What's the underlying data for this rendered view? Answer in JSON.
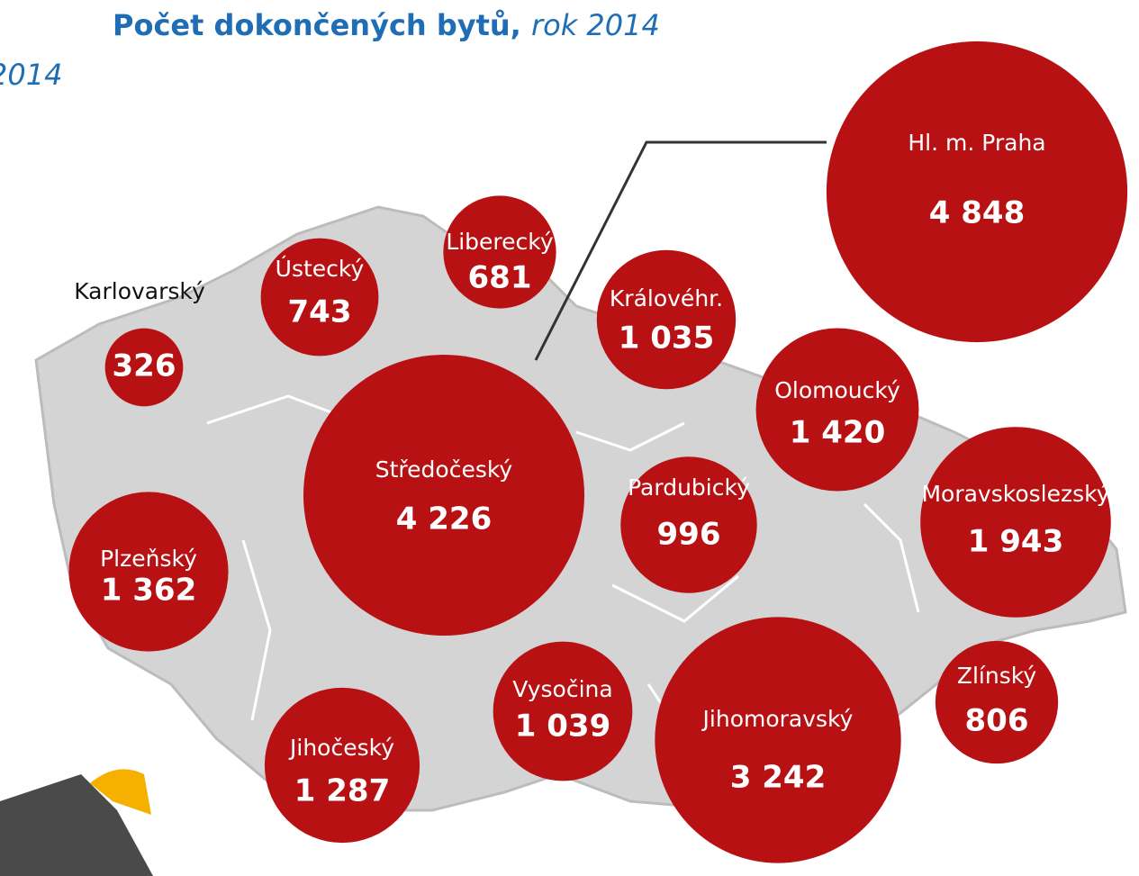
{
  "chart_data": {
    "type": "bubble-map",
    "title": "Počet dokončených bytů,",
    "subtitle": "rok 2014",
    "annotation": "2014",
    "color": "#b81114",
    "categories": [
      "Hl. m. Praha",
      "Středočeský",
      "Jihomoravský",
      "Moravskoslezský",
      "Olomoucký",
      "Plzeňský",
      "Jihočeský",
      "Vysočina",
      "Královéhr.",
      "Pardubický",
      "Liberecký",
      "Zlínský",
      "Ústecký",
      "Karlovarský"
    ],
    "values": [
      4848,
      4226,
      3242,
      1943,
      1420,
      1362,
      1287,
      1039,
      1035,
      996,
      681,
      806,
      743,
      326
    ],
    "value_labels": [
      "4 848",
      "4 226",
      "3 242",
      "1 943",
      "1 420",
      "1 362",
      "1 287",
      "1 039",
      "1 035",
      "996",
      "681",
      "806",
      "743",
      "326"
    ]
  }
}
